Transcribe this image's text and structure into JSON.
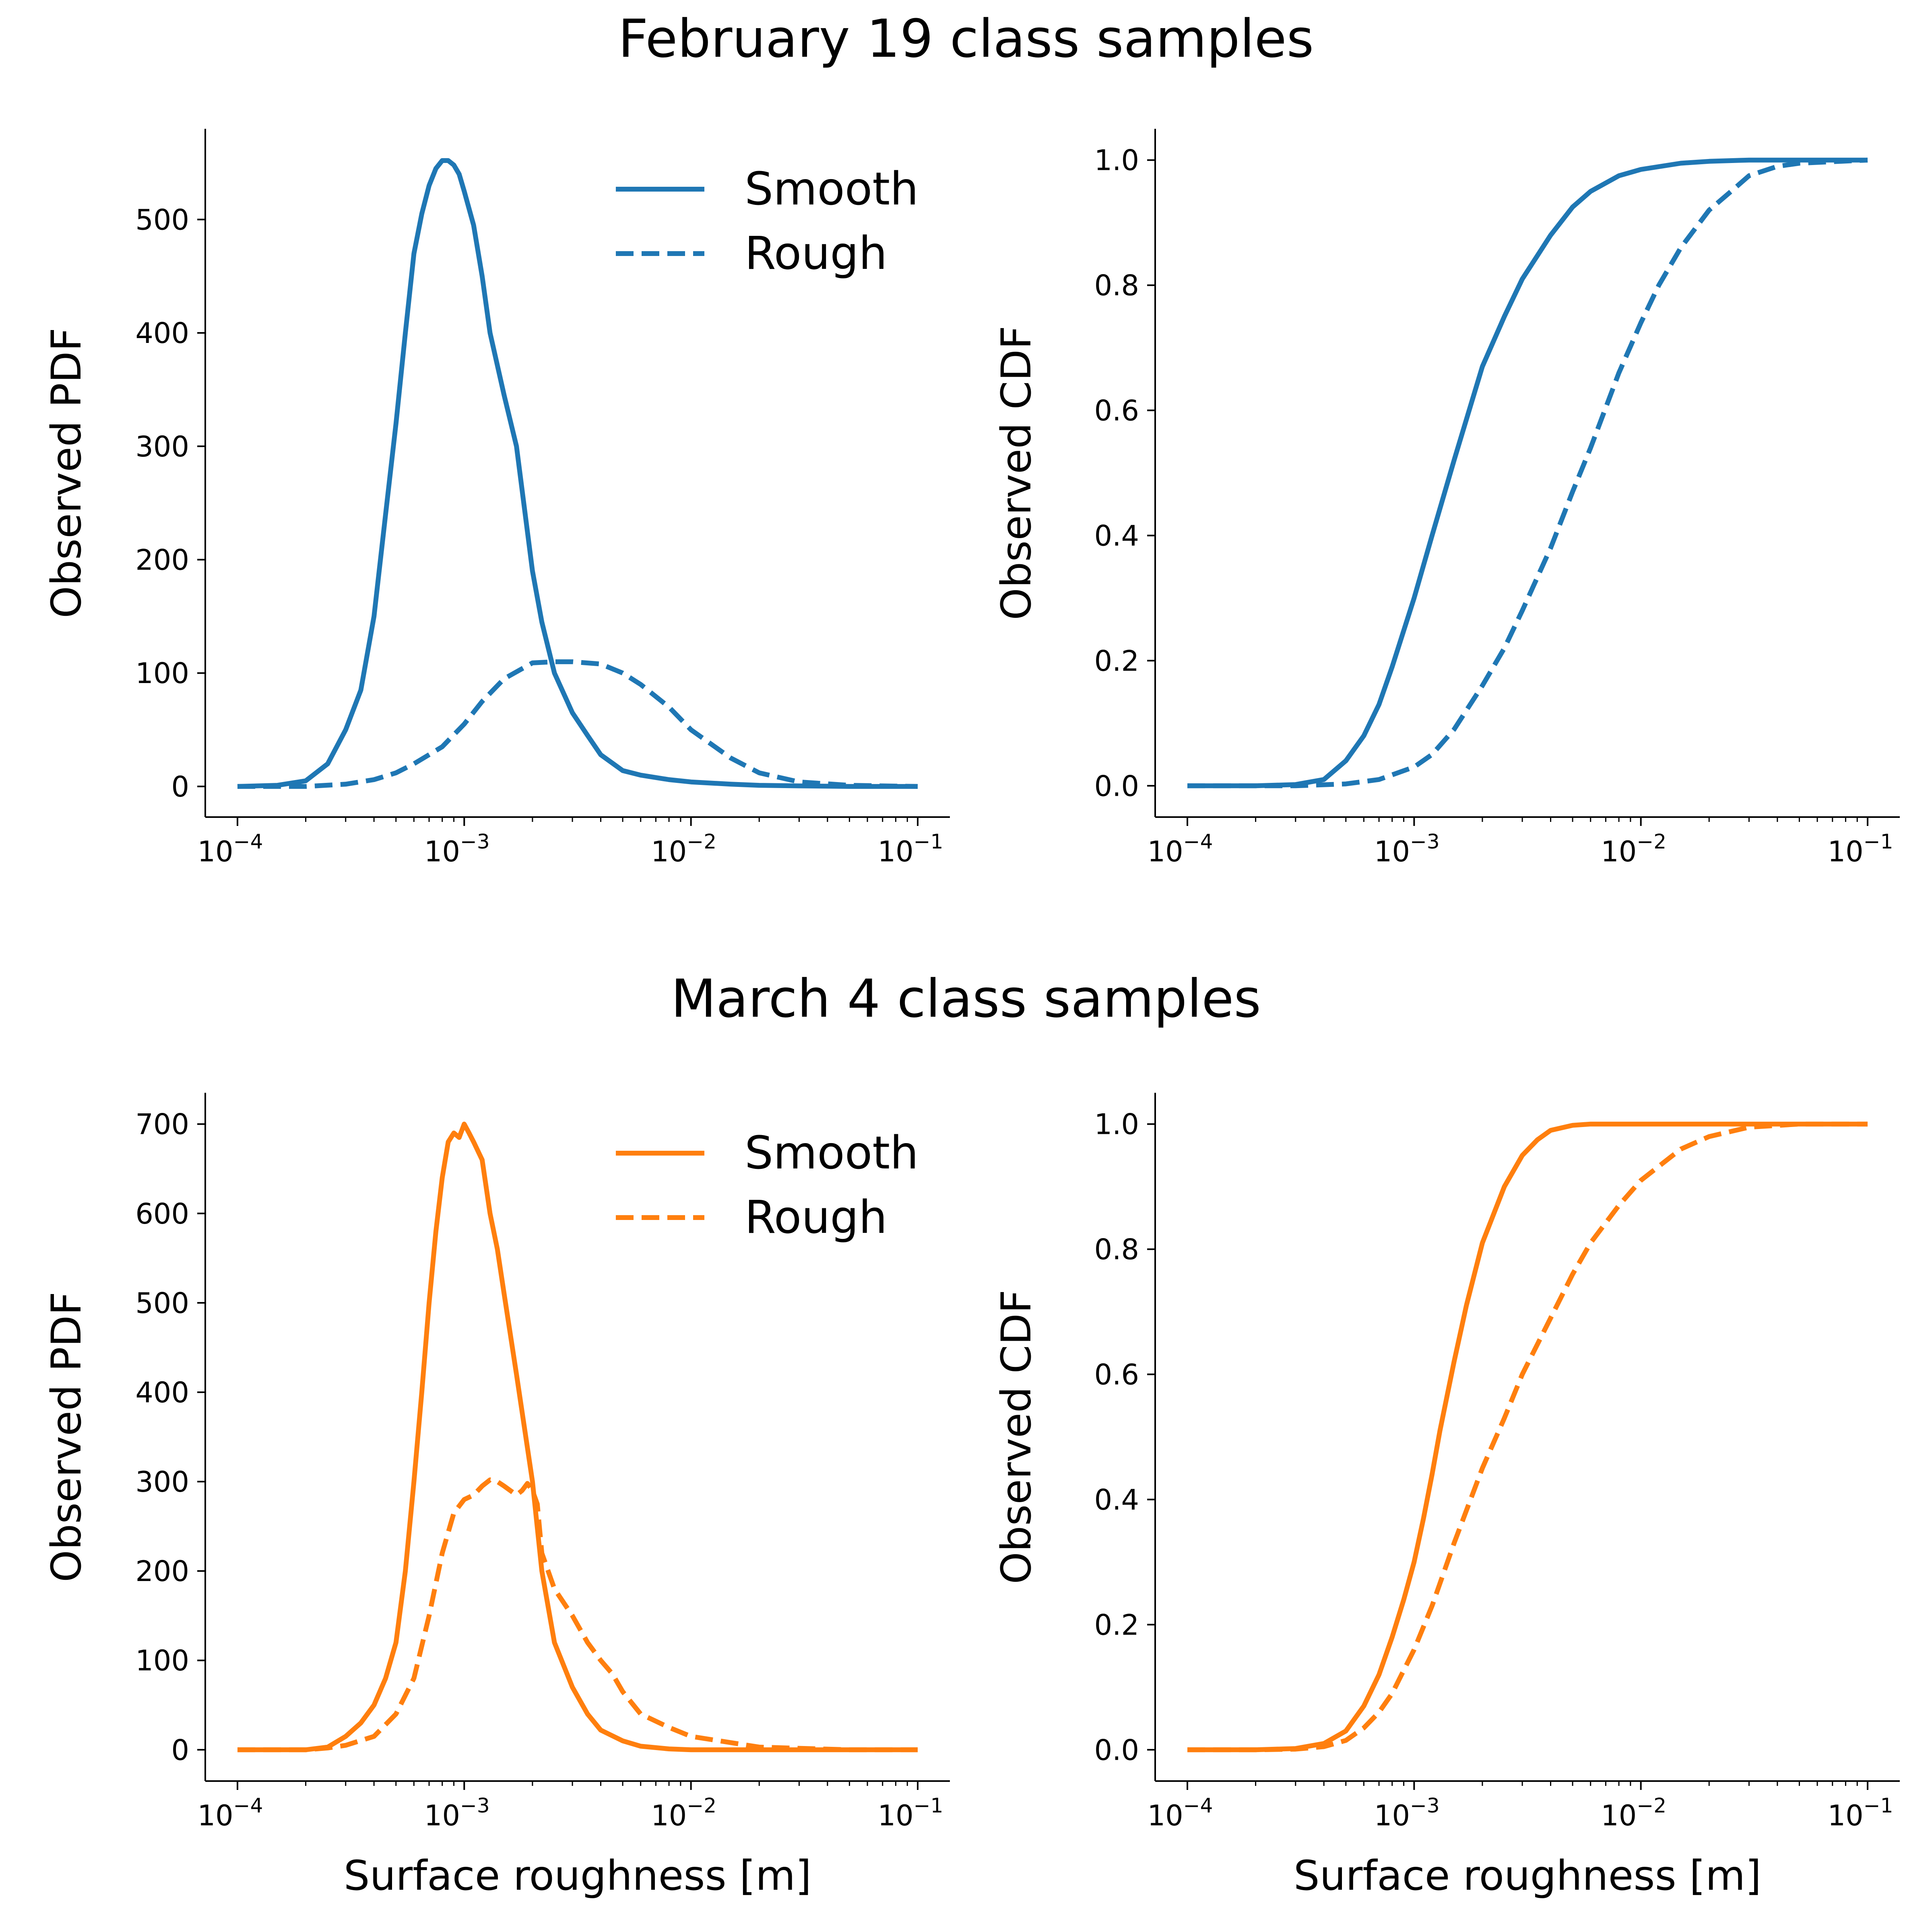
{
  "figure": {
    "row_titles": [
      "February 19 class samples",
      "March 4 class samples"
    ]
  },
  "colors": {
    "blue": "#1f77b4",
    "orange": "#ff7f0e"
  },
  "chart_data": [
    {
      "type": "line",
      "row_title": "February 19 class samples",
      "xlabel": "",
      "ylabel": "Observed PDF",
      "xscale": "log",
      "xlim": [
        0.0001,
        0.1
      ],
      "ylim": [
        -27,
        580
      ],
      "xticks": [
        0.0001,
        0.001,
        0.01,
        0.1
      ],
      "xtick_labels": [
        "10",
        "10",
        "10",
        "10"
      ],
      "xtick_exponents": [
        "−4",
        "−3",
        "−2",
        "−1"
      ],
      "yticks": [
        0,
        100,
        200,
        300,
        400,
        500
      ],
      "ytick_labels": [
        "0",
        "100",
        "200",
        "300",
        "400",
        "500"
      ],
      "legend": {
        "position": "top-right",
        "entries": [
          "Smooth",
          "Rough"
        ]
      },
      "grid": false,
      "color": "#1f77b4",
      "series": [
        {
          "name": "Smooth",
          "style": "solid",
          "x": [
            0.0001,
            0.00015,
            0.0002,
            0.00025,
            0.0003,
            0.00035,
            0.0004,
            0.00045,
            0.0005,
            0.00055,
            0.0006,
            0.00065,
            0.0007,
            0.00075,
            0.0008,
            0.00085,
            0.0009,
            0.00095,
            0.001,
            0.0011,
            0.0012,
            0.0013,
            0.0015,
            0.0017,
            0.002,
            0.0022,
            0.0025,
            0.003,
            0.0035,
            0.004,
            0.005,
            0.006,
            0.008,
            0.01,
            0.015,
            0.02,
            0.03,
            0.05,
            0.1
          ],
          "y": [
            0,
            1,
            5,
            20,
            50,
            85,
            150,
            240,
            320,
            400,
            470,
            505,
            530,
            545,
            552,
            552,
            548,
            540,
            525,
            495,
            450,
            400,
            345,
            300,
            190,
            145,
            100,
            65,
            45,
            28,
            14,
            10,
            6,
            4,
            2,
            1,
            0.5,
            0,
            0
          ]
        },
        {
          "name": "Rough",
          "style": "dashed",
          "x": [
            0.0001,
            0.00015,
            0.0002,
            0.0003,
            0.0004,
            0.0005,
            0.0006,
            0.0008,
            0.001,
            0.0012,
            0.0015,
            0.002,
            0.0025,
            0.003,
            0.004,
            0.005,
            0.006,
            0.008,
            0.01,
            0.015,
            0.02,
            0.03,
            0.05,
            0.1
          ],
          "y": [
            0,
            0,
            0,
            2,
            6,
            12,
            20,
            35,
            55,
            75,
            95,
            109,
            110,
            110,
            108,
            100,
            90,
            70,
            50,
            25,
            12,
            4,
            1,
            0
          ]
        }
      ]
    },
    {
      "type": "line",
      "row_title": "February 19 class samples",
      "xlabel": "",
      "ylabel": "Observed CDF",
      "xscale": "log",
      "xlim": [
        0.0001,
        0.1
      ],
      "ylim": [
        -0.05,
        1.05
      ],
      "xticks": [
        0.0001,
        0.001,
        0.01,
        0.1
      ],
      "xtick_labels": [
        "10",
        "10",
        "10",
        "10"
      ],
      "xtick_exponents": [
        "−4",
        "−3",
        "−2",
        "−1"
      ],
      "yticks": [
        0,
        0.2,
        0.4,
        0.6,
        0.8,
        1.0
      ],
      "ytick_labels": [
        "0.0",
        "0.2",
        "0.4",
        "0.6",
        "0.8",
        "1.0"
      ],
      "legend": null,
      "grid": false,
      "color": "#1f77b4",
      "series": [
        {
          "name": "Smooth",
          "style": "solid",
          "x": [
            0.0001,
            0.0002,
            0.0003,
            0.0004,
            0.0005,
            0.0006,
            0.0007,
            0.0008,
            0.001,
            0.0012,
            0.0015,
            0.002,
            0.0025,
            0.003,
            0.004,
            0.005,
            0.006,
            0.008,
            0.01,
            0.015,
            0.02,
            0.03,
            0.05,
            0.1
          ],
          "y": [
            0,
            0,
            0.002,
            0.01,
            0.04,
            0.08,
            0.13,
            0.19,
            0.3,
            0.4,
            0.52,
            0.67,
            0.75,
            0.81,
            0.88,
            0.925,
            0.95,
            0.975,
            0.985,
            0.995,
            0.998,
            1.0,
            1.0,
            1.0
          ]
        },
        {
          "name": "Rough",
          "style": "dashed",
          "x": [
            0.0001,
            0.0002,
            0.0003,
            0.0005,
            0.0007,
            0.001,
            0.0012,
            0.0015,
            0.002,
            0.0025,
            0.003,
            0.004,
            0.005,
            0.006,
            0.008,
            0.01,
            0.012,
            0.015,
            0.02,
            0.025,
            0.03,
            0.04,
            0.05,
            0.1
          ],
          "y": [
            0,
            0,
            0,
            0.003,
            0.01,
            0.03,
            0.05,
            0.09,
            0.16,
            0.22,
            0.28,
            0.38,
            0.47,
            0.54,
            0.66,
            0.74,
            0.8,
            0.86,
            0.92,
            0.95,
            0.975,
            0.99,
            0.995,
            1.0
          ]
        }
      ]
    },
    {
      "type": "line",
      "row_title": "March 4 class samples",
      "xlabel": "Surface roughness [m]",
      "ylabel": "Observed PDF",
      "xscale": "log",
      "xlim": [
        0.0001,
        0.1
      ],
      "ylim": [
        -35,
        735
      ],
      "xticks": [
        0.0001,
        0.001,
        0.01,
        0.1
      ],
      "xtick_labels": [
        "10",
        "10",
        "10",
        "10"
      ],
      "xtick_exponents": [
        "−4",
        "−3",
        "−2",
        "−1"
      ],
      "yticks": [
        0,
        100,
        200,
        300,
        400,
        500,
        600,
        700
      ],
      "ytick_labels": [
        "0",
        "100",
        "200",
        "300",
        "400",
        "500",
        "600",
        "700"
      ],
      "legend": {
        "position": "top-right",
        "entries": [
          "Smooth",
          "Rough"
        ]
      },
      "grid": false,
      "color": "#ff7f0e",
      "series": [
        {
          "name": "Smooth",
          "style": "solid",
          "x": [
            0.0001,
            0.0002,
            0.00025,
            0.0003,
            0.00035,
            0.0004,
            0.00045,
            0.0005,
            0.00055,
            0.0006,
            0.00065,
            0.0007,
            0.00075,
            0.0008,
            0.00085,
            0.0009,
            0.00095,
            0.001,
            0.00105,
            0.0011,
            0.0012,
            0.0013,
            0.0014,
            0.0015,
            0.0017,
            0.002,
            0.0022,
            0.0025,
            0.003,
            0.0035,
            0.004,
            0.005,
            0.006,
            0.008,
            0.01,
            0.02,
            0.05,
            0.1
          ],
          "y": [
            0,
            0,
            3,
            15,
            30,
            50,
            80,
            120,
            200,
            300,
            400,
            500,
            580,
            640,
            680,
            690,
            685,
            700,
            690,
            680,
            660,
            600,
            560,
            510,
            420,
            300,
            200,
            120,
            70,
            40,
            22,
            10,
            4,
            1,
            0,
            0,
            0,
            0
          ]
        },
        {
          "name": "Rough",
          "style": "dashed",
          "x": [
            0.0001,
            0.0002,
            0.00025,
            0.0003,
            0.0004,
            0.0005,
            0.0006,
            0.0007,
            0.0008,
            0.0009,
            0.001,
            0.0011,
            0.0012,
            0.0013,
            0.0014,
            0.0015,
            0.0017,
            0.0018,
            0.0019,
            0.002,
            0.0021,
            0.0022,
            0.0025,
            0.003,
            0.0035,
            0.004,
            0.0045,
            0.005,
            0.006,
            0.008,
            0.01,
            0.02,
            0.05,
            0.1
          ],
          "y": [
            0,
            0,
            2,
            5,
            15,
            40,
            80,
            150,
            220,
            265,
            280,
            285,
            295,
            302,
            300,
            295,
            285,
            290,
            298,
            290,
            275,
            220,
            180,
            150,
            120,
            100,
            85,
            65,
            40,
            25,
            15,
            3,
            0,
            0
          ]
        }
      ]
    },
    {
      "type": "line",
      "row_title": "March 4 class samples",
      "xlabel": "Surface roughness [m]",
      "ylabel": "Observed CDF",
      "xscale": "log",
      "xlim": [
        0.0001,
        0.1
      ],
      "ylim": [
        -0.05,
        1.05
      ],
      "xticks": [
        0.0001,
        0.001,
        0.01,
        0.1
      ],
      "xtick_labels": [
        "10",
        "10",
        "10",
        "10"
      ],
      "xtick_exponents": [
        "−4",
        "−3",
        "−2",
        "−1"
      ],
      "yticks": [
        0,
        0.2,
        0.4,
        0.6,
        0.8,
        1.0
      ],
      "ytick_labels": [
        "0.0",
        "0.2",
        "0.4",
        "0.6",
        "0.8",
        "1.0"
      ],
      "legend": null,
      "grid": false,
      "color": "#ff7f0e",
      "series": [
        {
          "name": "Smooth",
          "style": "solid",
          "x": [
            0.0001,
            0.0002,
            0.0003,
            0.0004,
            0.0005,
            0.0006,
            0.0007,
            0.0008,
            0.0009,
            0.001,
            0.0011,
            0.0012,
            0.0013,
            0.0015,
            0.0017,
            0.002,
            0.0025,
            0.003,
            0.0035,
            0.004,
            0.005,
            0.006,
            0.008,
            0.01,
            0.1
          ],
          "y": [
            0,
            0,
            0.002,
            0.01,
            0.03,
            0.07,
            0.12,
            0.18,
            0.24,
            0.3,
            0.37,
            0.44,
            0.51,
            0.62,
            0.71,
            0.81,
            0.9,
            0.95,
            0.975,
            0.99,
            0.998,
            1.0,
            1.0,
            1.0,
            1.0
          ]
        },
        {
          "name": "Rough",
          "style": "dashed",
          "x": [
            0.0001,
            0.0002,
            0.0003,
            0.0004,
            0.0005,
            0.0006,
            0.0007,
            0.0008,
            0.001,
            0.0012,
            0.0015,
            0.002,
            0.0025,
            0.003,
            0.004,
            0.005,
            0.006,
            0.008,
            0.01,
            0.015,
            0.02,
            0.03,
            0.05,
            0.1
          ],
          "y": [
            0,
            0,
            0.001,
            0.005,
            0.015,
            0.035,
            0.06,
            0.09,
            0.16,
            0.23,
            0.33,
            0.45,
            0.53,
            0.6,
            0.69,
            0.76,
            0.81,
            0.87,
            0.91,
            0.96,
            0.98,
            0.995,
            1.0,
            1.0
          ]
        }
      ]
    }
  ]
}
